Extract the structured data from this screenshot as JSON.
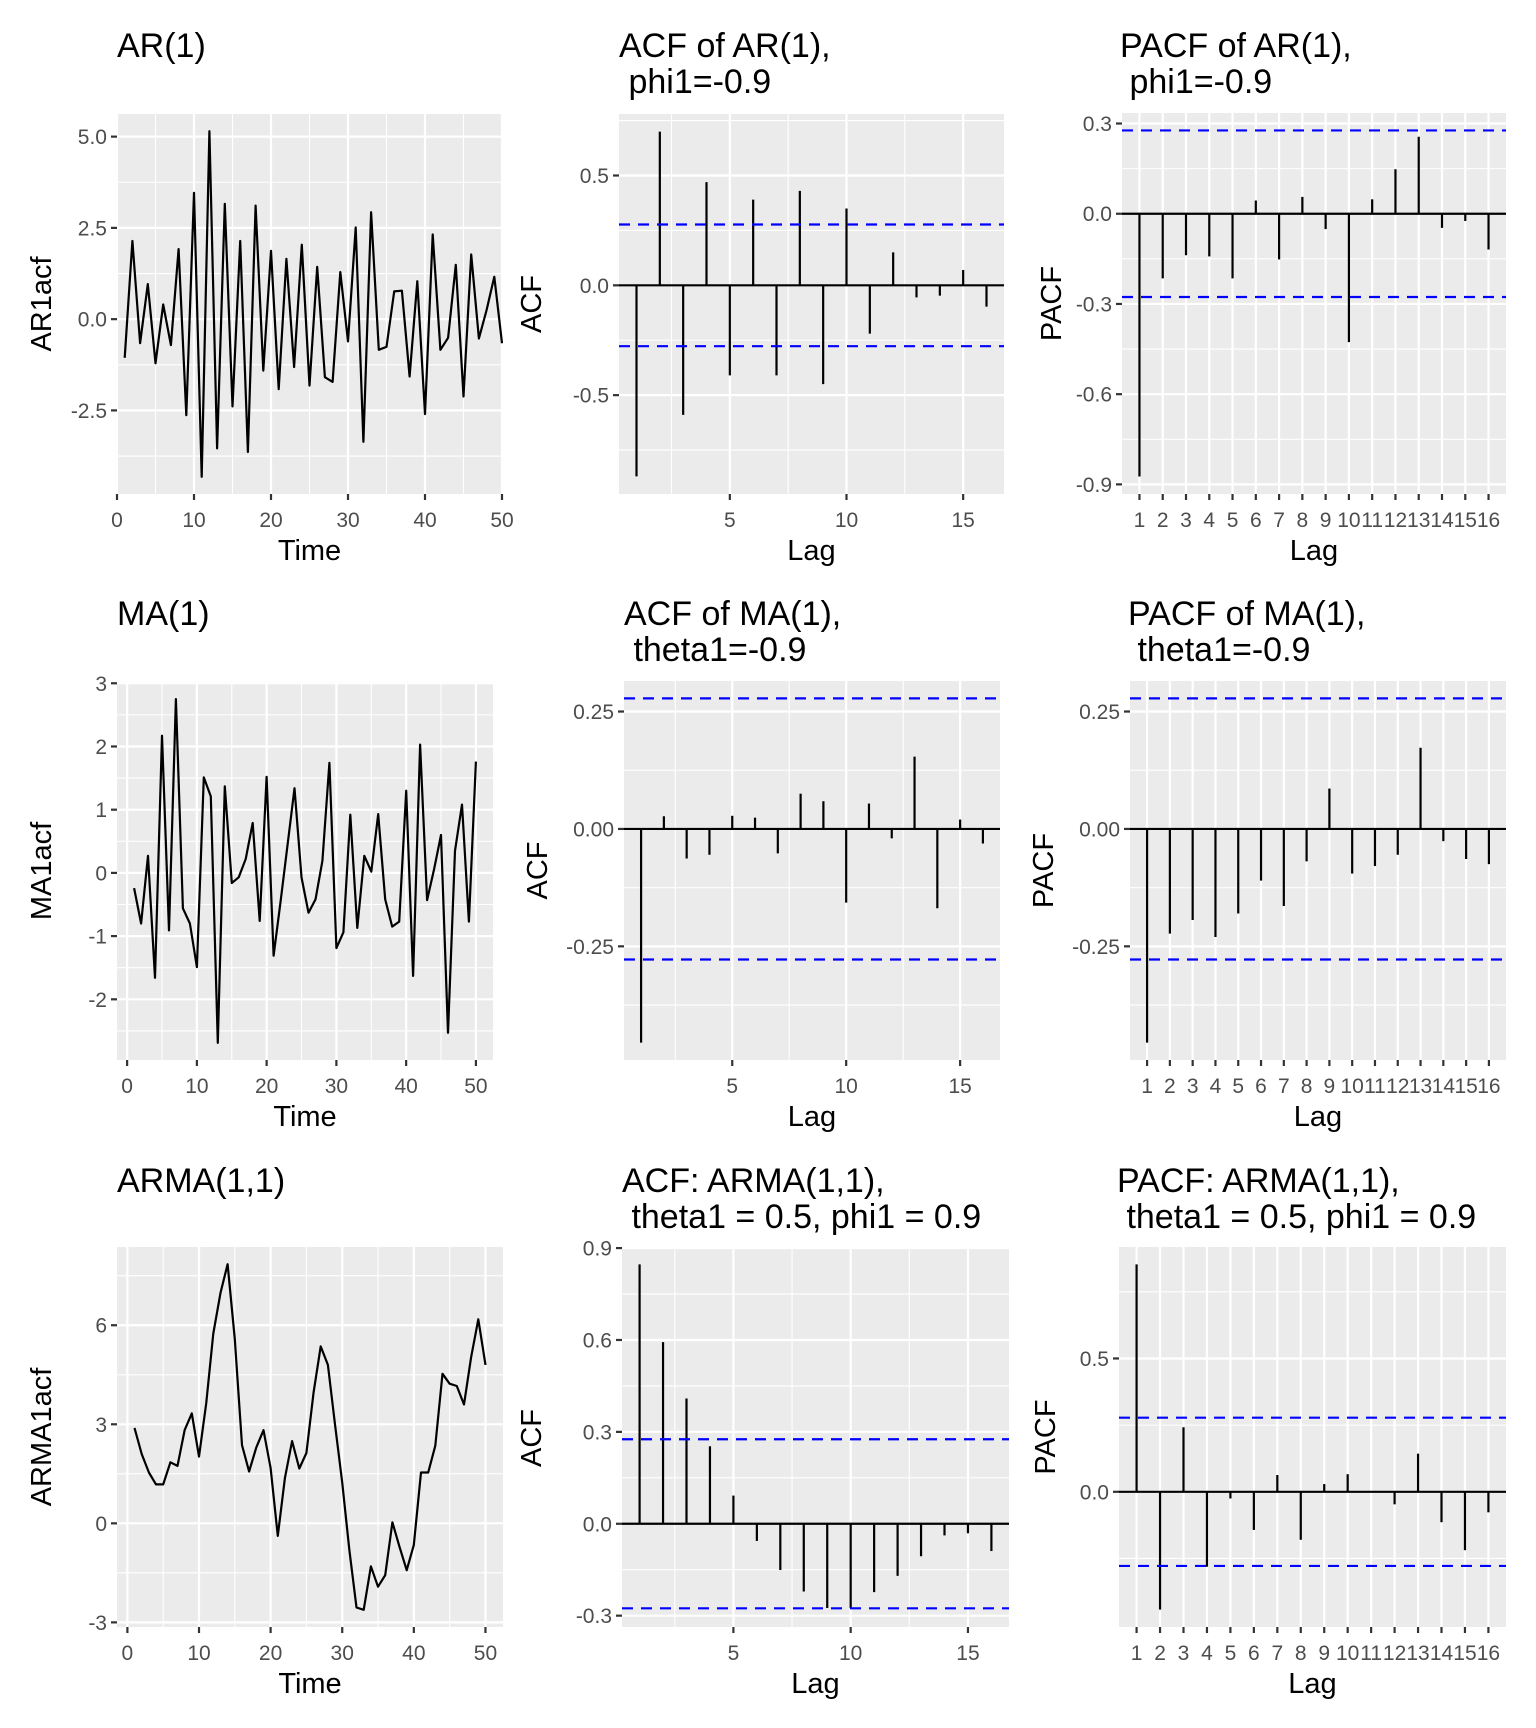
{
  "chart_data": [
    {
      "id": "ar1-series",
      "type": "line",
      "title": "AR(1)",
      "xlabel": "Time",
      "ylabel": "AR1acf",
      "xlim": [
        0,
        50
      ],
      "ylim": [
        -4.79,
        5.62
      ],
      "xticks": [
        0,
        10,
        20,
        30,
        40,
        50
      ],
      "xtick_labels": [
        "0",
        "10",
        "20",
        "30",
        "40",
        "50"
      ],
      "yticks": [
        -2.5,
        0.0,
        2.5,
        5.0
      ],
      "ytick_labels": [
        "-2.5",
        "0.0",
        "2.5",
        "5.0"
      ],
      "grid": true,
      "x": [
        1,
        2,
        3,
        4,
        5,
        6,
        7,
        8,
        9,
        10,
        11,
        12,
        13,
        14,
        15,
        16,
        17,
        18,
        19,
        20,
        21,
        22,
        23,
        24,
        25,
        26,
        27,
        28,
        29,
        30,
        31,
        32,
        33,
        34,
        35,
        36,
        37,
        38,
        39,
        40,
        41,
        42,
        43,
        44,
        45,
        46,
        47,
        48,
        49,
        50
      ],
      "values": [
        -1.06,
        2.14,
        -0.66,
        0.96,
        -1.21,
        0.4,
        -0.71,
        1.92,
        -2.63,
        3.46,
        -4.32,
        5.15,
        -3.54,
        3.16,
        -2.39,
        2.14,
        -3.64,
        3.11,
        -1.41,
        1.87,
        -1.92,
        1.65,
        -1.31,
        2.04,
        -1.82,
        1.43,
        -1.59,
        -1.72,
        1.29,
        -0.61,
        2.51,
        -3.36,
        2.93,
        -0.84,
        -0.76,
        0.76,
        0.78,
        -1.57,
        1.04,
        -2.6,
        2.32,
        -0.84,
        -0.51,
        1.49,
        -2.12,
        1.77,
        -0.53,
        0.25,
        1.16,
        -0.66
      ]
    },
    {
      "id": "ar1-acf",
      "type": "bar",
      "title": "ACF of AR(1),\n phi1=-0.9",
      "title_lines": [
        "ACF of AR(1),",
        " phi1=-0.9"
      ],
      "xlabel": "Lag",
      "ylabel": "ACF",
      "xlim": [
        0.25,
        16.75
      ],
      "ylim": [
        -0.95,
        0.78
      ],
      "xticks": [
        5,
        10,
        15
      ],
      "xtick_labels": [
        "5",
        "10",
        "15"
      ],
      "yticks": [
        -0.5,
        0.0,
        0.5
      ],
      "ytick_labels": [
        "-0.5",
        "0.0",
        "0.5"
      ],
      "discrete_x": false,
      "grid": true,
      "x": [
        1,
        2,
        3,
        4,
        5,
        6,
        7,
        8,
        9,
        10,
        11,
        12,
        13,
        14,
        15,
        16
      ],
      "values": [
        -0.87,
        0.7,
        -0.59,
        0.47,
        -0.41,
        0.39,
        -0.41,
        0.43,
        -0.45,
        0.35,
        -0.22,
        0.15,
        -0.055,
        -0.047,
        0.07,
        -0.097
      ],
      "ci": 0.277,
      "ci_color": "#0000FF"
    },
    {
      "id": "ar1-pacf",
      "type": "bar",
      "title": "PACF of AR(1),\n phi1=-0.9",
      "title_lines": [
        "PACF of AR(1),",
        " phi1=-0.9"
      ],
      "xlabel": "Lag",
      "ylabel": "PACF",
      "xlim": [
        0.25,
        16.75
      ],
      "ylim": [
        -0.932,
        0.335
      ],
      "xticks": [
        1,
        2,
        3,
        4,
        5,
        6,
        7,
        8,
        9,
        10,
        11,
        12,
        13,
        14,
        15,
        16
      ],
      "xtick_labels": [
        "1",
        "2",
        "3",
        "4",
        "5",
        "6",
        "7",
        "8",
        "9",
        "10",
        "11",
        "12",
        "13",
        "14",
        "15",
        "16"
      ],
      "yticks": [
        -0.9,
        -0.6,
        -0.3,
        0.0,
        0.3
      ],
      "ytick_labels": [
        "-0.9",
        "-0.6",
        "-0.3",
        "0.0",
        "0.3"
      ],
      "discrete_x": true,
      "grid": true,
      "x": [
        1,
        2,
        3,
        4,
        5,
        6,
        7,
        8,
        9,
        10,
        11,
        12,
        13,
        14,
        15,
        16
      ],
      "values": [
        -0.874,
        -0.215,
        -0.138,
        -0.142,
        -0.215,
        0.044,
        -0.152,
        0.056,
        -0.051,
        -0.427,
        0.048,
        0.148,
        0.256,
        -0.047,
        -0.024,
        -0.119
      ],
      "ci": 0.277,
      "ci_color": "#0000FF"
    },
    {
      "id": "ma1-series",
      "type": "line",
      "title": "MA(1)",
      "xlabel": "Time",
      "ylabel": "MA1acf",
      "xlim": [
        -1.45,
        52.45
      ],
      "ylim": [
        -2.96,
        3.02
      ],
      "xticks": [
        0,
        10,
        20,
        30,
        40,
        50
      ],
      "xtick_labels": [
        "0",
        "10",
        "20",
        "30",
        "40",
        "50"
      ],
      "yticks": [
        -2,
        -1,
        0,
        1,
        2,
        3
      ],
      "ytick_labels": [
        "-2",
        "-1",
        "0",
        "1",
        "2",
        "3"
      ],
      "grid": true,
      "x": [
        1,
        2,
        3,
        4,
        5,
        6,
        7,
        8,
        9,
        10,
        11,
        12,
        13,
        14,
        15,
        16,
        17,
        18,
        19,
        20,
        21,
        22,
        23,
        24,
        25,
        26,
        27,
        28,
        29,
        30,
        31,
        32,
        33,
        34,
        35,
        36,
        37,
        38,
        39,
        40,
        41,
        42,
        43,
        44,
        45,
        46,
        47,
        48,
        49,
        50
      ],
      "values": [
        -0.24,
        -0.8,
        0.27,
        -1.66,
        2.17,
        -0.91,
        2.75,
        -0.56,
        -0.8,
        -1.49,
        1.51,
        1.21,
        -2.69,
        1.37,
        -0.16,
        -0.07,
        0.22,
        0.79,
        -0.76,
        1.52,
        -1.31,
        -0.45,
        0.45,
        1.34,
        -0.07,
        -0.63,
        -0.42,
        0.19,
        1.74,
        -1.19,
        -0.94,
        0.92,
        -0.87,
        0.27,
        0.02,
        0.93,
        -0.42,
        -0.85,
        -0.77,
        1.3,
        -1.63,
        2.03,
        -0.43,
        0.06,
        0.6,
        -2.53,
        0.35,
        1.08,
        -0.77,
        1.76
      ]
    },
    {
      "id": "ma1-acf",
      "type": "bar",
      "title": "ACF of MA(1),\n theta1=-0.9",
      "title_lines": [
        "ACF of MA(1),",
        " theta1=-0.9"
      ],
      "xlabel": "Lag",
      "ylabel": "ACF",
      "xlim": [
        0.25,
        16.75
      ],
      "ylim": [
        -0.492,
        0.315
      ],
      "xticks": [
        5,
        10,
        15
      ],
      "xtick_labels": [
        "5",
        "10",
        "15"
      ],
      "yticks": [
        -0.25,
        0.0,
        0.25
      ],
      "ytick_labels": [
        "-0.25",
        "0.00",
        "0.25"
      ],
      "discrete_x": false,
      "grid": true,
      "x": [
        1,
        2,
        3,
        4,
        5,
        6,
        7,
        8,
        9,
        10,
        11,
        12,
        13,
        14,
        15,
        16
      ],
      "values": [
        -0.455,
        0.027,
        -0.063,
        -0.055,
        0.028,
        0.024,
        -0.052,
        0.075,
        0.059,
        -0.157,
        0.054,
        -0.02,
        0.154,
        -0.169,
        0.02,
        -0.031
      ],
      "ci": 0.278,
      "ci_color": "#0000FF"
    },
    {
      "id": "ma1-pacf",
      "type": "bar",
      "title": "PACF of MA(1),\n theta1=-0.9",
      "title_lines": [
        "PACF of MA(1),",
        " theta1=-0.9"
      ],
      "xlabel": "Lag",
      "ylabel": "PACF",
      "xlim": [
        0.25,
        16.75
      ],
      "ylim": [
        -0.492,
        0.315
      ],
      "xticks": [
        1,
        2,
        3,
        4,
        5,
        6,
        7,
        8,
        9,
        10,
        11,
        12,
        13,
        14,
        15,
        16
      ],
      "xtick_labels": [
        "1",
        "2",
        "3",
        "4",
        "5",
        "6",
        "7",
        "8",
        "9",
        "10",
        "11",
        "12",
        "13",
        "14",
        "15",
        "16"
      ],
      "yticks": [
        -0.25,
        0.0,
        0.25
      ],
      "ytick_labels": [
        "-0.25",
        "0.00",
        "0.25"
      ],
      "discrete_x": true,
      "grid": true,
      "x": [
        1,
        2,
        3,
        4,
        5,
        6,
        7,
        8,
        9,
        10,
        11,
        12,
        13,
        14,
        15,
        16
      ],
      "values": [
        -0.455,
        -0.223,
        -0.194,
        -0.23,
        -0.18,
        -0.11,
        -0.164,
        -0.069,
        0.086,
        -0.095,
        -0.079,
        -0.055,
        0.173,
        -0.026,
        -0.064,
        -0.075
      ],
      "ci": 0.278,
      "ci_color": "#0000FF"
    },
    {
      "id": "arma11-series",
      "type": "line",
      "title": "ARMA(1,1)",
      "xlabel": "Time",
      "ylabel": "ARMA1acf",
      "xlim": [
        -1.45,
        52.45
      ],
      "ylim": [
        -3.14,
        8.37
      ],
      "xticks": [
        0,
        10,
        20,
        30,
        40,
        50
      ],
      "xtick_labels": [
        "0",
        "10",
        "20",
        "30",
        "40",
        "50"
      ],
      "yticks": [
        -3,
        0,
        3,
        6
      ],
      "ytick_labels": [
        "-3",
        "0",
        "3",
        "6"
      ],
      "grid": true,
      "x": [
        1,
        2,
        3,
        4,
        5,
        6,
        7,
        8,
        9,
        10,
        11,
        12,
        13,
        14,
        15,
        16,
        17,
        18,
        19,
        20,
        21,
        22,
        23,
        24,
        25,
        26,
        27,
        28,
        29,
        30,
        31,
        32,
        33,
        34,
        35,
        36,
        37,
        38,
        39,
        40,
        41,
        42,
        43,
        44,
        45,
        46,
        47,
        48,
        49,
        50
      ],
      "values": [
        2.89,
        2.1,
        1.54,
        1.18,
        1.18,
        1.85,
        1.74,
        2.83,
        3.33,
        2.02,
        3.63,
        5.75,
        6.98,
        7.85,
        5.58,
        2.37,
        1.57,
        2.3,
        2.82,
        1.68,
        -0.38,
        1.37,
        2.49,
        1.66,
        2.13,
        3.97,
        5.36,
        4.8,
        2.97,
        1.24,
        -0.82,
        -2.55,
        -2.62,
        -1.3,
        -1.92,
        -1.57,
        0.03,
        -0.71,
        -1.42,
        -0.66,
        1.54,
        1.54,
        2.35,
        4.53,
        4.23,
        4.16,
        3.6,
        5.03,
        6.18,
        4.8
      ]
    },
    {
      "id": "arma11-acf",
      "type": "bar",
      "title": "ACF: ARMA(1,1),\n theta1 = 0.5, phi1 = 0.9",
      "title_lines": [
        "ACF: ARMA(1,1),",
        " theta1 = 0.5, phi1 = 0.9"
      ],
      "xlabel": "Lag",
      "ylabel": "ACF",
      "xlim": [
        0.25,
        16.75
      ],
      "ylim": [
        -0.337,
        0.897
      ],
      "xticks": [
        5,
        10,
        15
      ],
      "xtick_labels": [
        "5",
        "10",
        "15"
      ],
      "yticks": [
        -0.3,
        0.0,
        0.3,
        0.6,
        0.9
      ],
      "ytick_labels": [
        "-0.3",
        "0.0",
        "0.3",
        "0.6",
        "0.9"
      ],
      "discrete_x": false,
      "grid": true,
      "x": [
        1,
        2,
        3,
        4,
        5,
        6,
        7,
        8,
        9,
        10,
        11,
        12,
        13,
        14,
        15,
        16
      ],
      "values": [
        0.847,
        0.593,
        0.409,
        0.253,
        0.092,
        -0.056,
        -0.151,
        -0.221,
        -0.275,
        -0.275,
        -0.223,
        -0.17,
        -0.106,
        -0.038,
        -0.031,
        -0.089
      ],
      "ci": 0.276,
      "ci_color": "#0000FF"
    },
    {
      "id": "arma11-pacf",
      "type": "bar",
      "title": "PACF: ARMA(1,1),\n theta1 = 0.5, phi1 = 0.9",
      "title_lines": [
        "PACF: ARMA(1,1),",
        " theta1 = 0.5, phi1 = 0.9"
      ],
      "xlabel": "Lag",
      "ylabel": "PACF",
      "xlim": [
        0.25,
        16.75
      ],
      "ylim": [
        -0.507,
        0.918
      ],
      "xticks": [
        1,
        2,
        3,
        4,
        5,
        6,
        7,
        8,
        9,
        10,
        11,
        12,
        13,
        14,
        15,
        16
      ],
      "xtick_labels": [
        "1",
        "2",
        "3",
        "4",
        "5",
        "6",
        "7",
        "8",
        "9",
        "10",
        "11",
        "12",
        "13",
        "14",
        "15",
        "16"
      ],
      "yticks": [
        0.0,
        0.5
      ],
      "ytick_labels": [
        "0.0",
        "0.5"
      ],
      "discrete_x": true,
      "grid": true,
      "x": [
        1,
        2,
        3,
        4,
        5,
        6,
        7,
        8,
        9,
        10,
        11,
        12,
        13,
        14,
        15,
        16
      ],
      "values": [
        0.853,
        -0.442,
        0.242,
        -0.281,
        -0.025,
        -0.143,
        0.063,
        -0.18,
        0.029,
        0.066,
        0.002,
        -0.047,
        0.143,
        -0.114,
        -0.219,
        -0.077
      ],
      "ci": 0.278,
      "ci_color": "#0000FF"
    }
  ]
}
